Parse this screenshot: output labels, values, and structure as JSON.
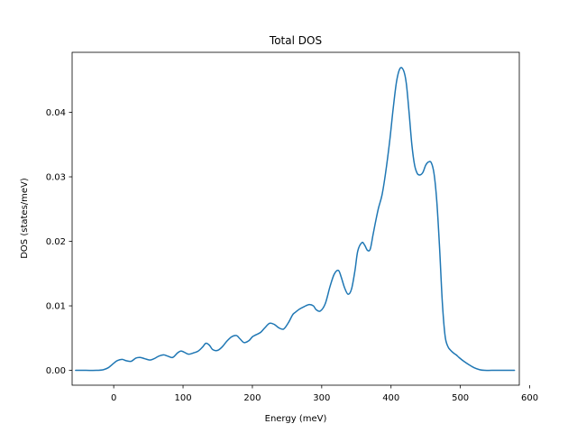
{
  "chart_data": {
    "type": "line",
    "title": "Total DOS",
    "xlabel": "Energy (meV)",
    "ylabel": "DOS (states/meV)",
    "xlim": [
      -60,
      585
    ],
    "ylim": [
      -0.0023,
      0.0493
    ],
    "xticks": [
      0,
      100,
      200,
      300,
      400,
      500,
      600
    ],
    "xtick_labels": [
      "0",
      "100",
      "200",
      "300",
      "400",
      "500",
      "600"
    ],
    "yticks": [
      0.0,
      0.01,
      0.02,
      0.03,
      0.04
    ],
    "ytick_labels": [
      "0.00",
      "0.01",
      "0.02",
      "0.03",
      "0.04"
    ],
    "grid": false,
    "line_color": "#1f77b4",
    "series": [
      {
        "x": [
          -55,
          -40,
          -25,
          -15,
          -8,
          0,
          5,
          12,
          18,
          25,
          32,
          38,
          45,
          52,
          58,
          65,
          72,
          78,
          85,
          92,
          97,
          102,
          108,
          115,
          122,
          128,
          133,
          138,
          143,
          150,
          157,
          163,
          170,
          177,
          182,
          188,
          195,
          200,
          205,
          212,
          218,
          225,
          232,
          238,
          245,
          252,
          258,
          262,
          268,
          275,
          282,
          288,
          292,
          298,
          305,
          312,
          318,
          324,
          328,
          333,
          338,
          343,
          348,
          352,
          358,
          362,
          366,
          370,
          374,
          378,
          382,
          387,
          392,
          398,
          403,
          408,
          413,
          418,
          422,
          426,
          430,
          434,
          438,
          442,
          446,
          450,
          454,
          458,
          462,
          466,
          470,
          474,
          478,
          482,
          486,
          490,
          494,
          498,
          505,
          512,
          520,
          528,
          535,
          545,
          560,
          578
        ],
        "y": [
          0.0,
          0.0,
          0.0,
          0.0001,
          0.0004,
          0.0011,
          0.0015,
          0.0017,
          0.0015,
          0.0014,
          0.0019,
          0.002,
          0.0018,
          0.0016,
          0.0018,
          0.0022,
          0.0024,
          0.0022,
          0.002,
          0.0027,
          0.003,
          0.0028,
          0.0025,
          0.0027,
          0.003,
          0.0036,
          0.0042,
          0.0039,
          0.0032,
          0.0031,
          0.0037,
          0.0045,
          0.0052,
          0.0054,
          0.0049,
          0.0043,
          0.0046,
          0.0052,
          0.0055,
          0.0059,
          0.0066,
          0.0073,
          0.0071,
          0.0066,
          0.0064,
          0.0074,
          0.0086,
          0.009,
          0.0095,
          0.0099,
          0.0102,
          0.01,
          0.0094,
          0.0092,
          0.0103,
          0.013,
          0.0149,
          0.0155,
          0.0145,
          0.0128,
          0.0118,
          0.0126,
          0.0155,
          0.0185,
          0.0198,
          0.0194,
          0.0186,
          0.0188,
          0.021,
          0.0232,
          0.0252,
          0.0272,
          0.0305,
          0.0355,
          0.0405,
          0.0448,
          0.0468,
          0.0465,
          0.0445,
          0.04,
          0.035,
          0.0318,
          0.0305,
          0.0303,
          0.0307,
          0.0318,
          0.0323,
          0.0322,
          0.0305,
          0.0262,
          0.019,
          0.0105,
          0.0053,
          0.0037,
          0.0031,
          0.0027,
          0.0024,
          0.002,
          0.0014,
          0.0009,
          0.0004,
          0.0001,
          0.0,
          0.0,
          0.0,
          0.0
        ]
      }
    ]
  }
}
